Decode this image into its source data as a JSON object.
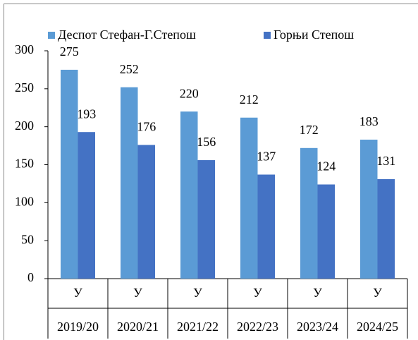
{
  "chart_data": {
    "type": "bar",
    "categories": [
      "У",
      "У",
      "У",
      "У",
      "У",
      "У"
    ],
    "groups": [
      "2019/20",
      "2020/21",
      "2021/22",
      "2022/23",
      "2023/24",
      "2024/25"
    ],
    "series": [
      {
        "name": "Деспот Стефан-Г.Степош",
        "color": "#5b9bd5",
        "values": [
          275,
          252,
          220,
          212,
          172,
          183
        ]
      },
      {
        "name": "Горњи Степош",
        "color": "#4472c4",
        "values": [
          193,
          176,
          156,
          137,
          124,
          131
        ]
      }
    ],
    "ylim": [
      0,
      300
    ],
    "yticks": [
      0,
      50,
      100,
      150,
      200,
      250,
      300
    ],
    "legend": "top"
  }
}
